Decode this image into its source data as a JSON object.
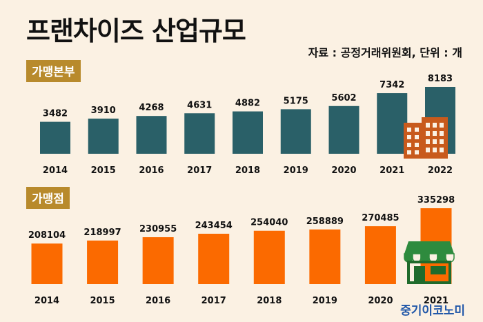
{
  "title": "프랜차이즈 산업규모",
  "source": "자료 : 공정거래위원회, 단위 : 개",
  "brand": "중기이코노미",
  "colors": {
    "background": "#fbf1e3",
    "hq_bar": "#2a6068",
    "store_bar": "#fb6a00",
    "tag": "#b88a2c",
    "brand": "#1f56a8"
  },
  "icons": {
    "hq": "building-icon",
    "store": "storefront-icon"
  },
  "chart_data": [
    {
      "type": "bar",
      "title": "가맹본부",
      "categories": [
        "2014",
        "2015",
        "2016",
        "2017",
        "2018",
        "2019",
        "2020",
        "2021",
        "2022"
      ],
      "values": [
        3482,
        3910,
        4268,
        4631,
        4882,
        5175,
        5602,
        7342,
        8183
      ],
      "ylim": [
        0,
        8183
      ]
    },
    {
      "type": "bar",
      "title": "가맹점",
      "categories": [
        "2014",
        "2015",
        "2016",
        "2017",
        "2018",
        "2019",
        "2020",
        "2021"
      ],
      "values": [
        208104,
        218997,
        230955,
        243454,
        254040,
        258889,
        270485,
        335298
      ],
      "ylim": [
        0,
        335298
      ]
    }
  ]
}
